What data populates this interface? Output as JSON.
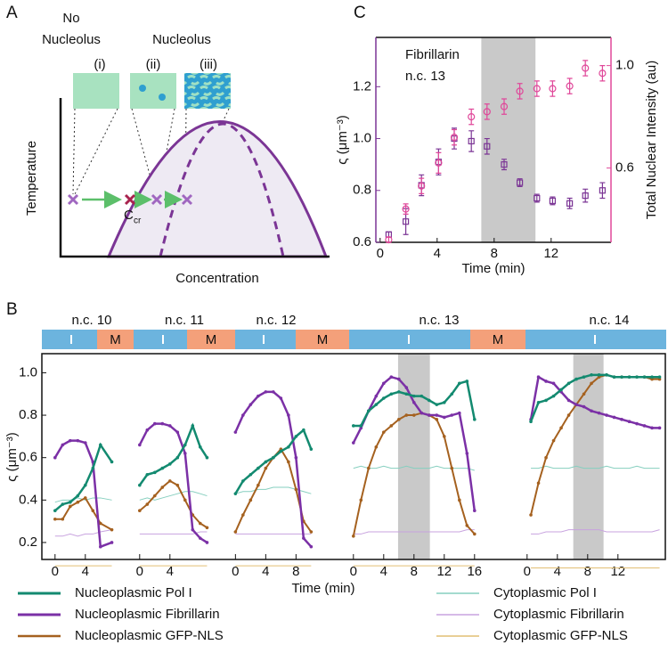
{
  "diagram": {
    "panel_label": "A",
    "no_nucleolus": [
      "No",
      "Nucleolus"
    ],
    "nucleolus": "Nucleolus",
    "phases": [
      "(i)",
      "(ii)",
      "(iii)"
    ],
    "y_label": "Temperature",
    "x_label": "Concentration",
    "critical": {
      "symbol": "C",
      "subscript": "cr"
    }
  },
  "chart_data": [
    {
      "type": "scatter",
      "panel_label": "C",
      "annotation": [
        "Fibrillarin",
        "n.c. 13"
      ],
      "x_label": "Time (min)",
      "y_label": "ς (μm⁻³)",
      "y2_label": "Total Nuclear Intensity (au)",
      "xlim": [
        -0.3,
        16.2
      ],
      "xticks": [
        0,
        4,
        8,
        12
      ],
      "ylim": [
        0.6,
        1.39
      ],
      "yticks": [
        0.6,
        0.8,
        {
          "value": 1.0,
          "label": "1.0"
        },
        1.2
      ],
      "y2lim": [
        0.31,
        1.11
      ],
      "y2ticks": [
        0.6,
        {
          "value": 1.0,
          "label": "1.0"
        }
      ],
      "shade": [
        7.1,
        10.9
      ],
      "x": [
        0.6,
        1.8,
        2.9,
        4.1,
        5.2,
        6.4,
        7.5,
        8.7,
        9.8,
        11.0,
        12.1,
        13.3,
        14.4,
        15.6
      ],
      "series": [
        {
          "color": "#7b3595",
          "marker": "square",
          "values": [
            0.63,
            0.68,
            0.82,
            0.91,
            1.0,
            0.99,
            0.97,
            0.9,
            0.83,
            0.77,
            0.76,
            0.75,
            0.78,
            0.8
          ],
          "errors": [
            0.01,
            0.05,
            0.04,
            0.05,
            0.04,
            0.04,
            0.03,
            0.02,
            0.015,
            0.015,
            0.015,
            0.02,
            0.025,
            0.03
          ]
        },
        {
          "color": "#e0489a",
          "marker": "circle",
          "axis": "y2",
          "values": [
            0.32,
            0.44,
            0.53,
            0.62,
            0.72,
            0.8,
            0.82,
            0.84,
            0.9,
            0.91,
            0.91,
            0.92,
            0.99,
            0.97
          ],
          "errors": [
            0.01,
            0.02,
            0.03,
            0.04,
            0.03,
            0.03,
            0.03,
            0.03,
            0.03,
            0.03,
            0.03,
            0.03,
            0.03,
            0.03
          ]
        }
      ]
    },
    {
      "type": "line",
      "panel_label": "B",
      "x_label": "Time (min)",
      "y_label": "ς (μm⁻³)",
      "ylim": [
        0.12,
        1.09
      ],
      "yticks": [
        0.2,
        0.4,
        0.6,
        0.8,
        {
          "value": 1.0,
          "label": "1.0"
        }
      ],
      "legend": "bottom",
      "series": [
        {
          "name": "Nucleoplasmic Pol I",
          "color": "#138a70",
          "width": 2.5
        },
        {
          "name": "Nucleoplasmic Fibrillarin",
          "color": "#7b30a6",
          "width": 2.5
        },
        {
          "name": "Nucleoplasmic GFP-NLS",
          "color": "#a5611f",
          "width": 2
        },
        {
          "name": "Cytoplasmic Pol I",
          "color": "#86cfbf",
          "width": 1
        },
        {
          "name": "Cytoplasmic Fibrillarin",
          "color": "#c8a3df",
          "width": 1
        },
        {
          "name": "Cytoplasmic GFP-NLS",
          "color": "#e2bf74",
          "width": 1
        }
      ],
      "panels": [
        {
          "title": "n.c. 10",
          "phase": "M",
          "xlim": [
            -0.8,
            8.1
          ],
          "xticks": [
            0,
            4
          ],
          "x": [
            0,
            1,
            2,
            3,
            4,
            5,
            6,
            7.5
          ],
          "values": [
            [
              0.35,
              0.38,
              0.39,
              0.42,
              0.47,
              0.55,
              0.66,
              0.58
            ],
            [
              0.6,
              0.66,
              0.68,
              0.68,
              0.67,
              0.58,
              0.18,
              0.2
            ],
            [
              0.31,
              0.31,
              0.37,
              0.39,
              0.41,
              0.35,
              0.29,
              0.26
            ],
            [
              0.39,
              0.4,
              0.4,
              0.41,
              0.4,
              0.41,
              0.41,
              0.4
            ],
            [
              0.23,
              0.23,
              0.24,
              0.23,
              0.24,
              0.24,
              0.25,
              0.26
            ],
            [
              0.09,
              0.09,
              0.09,
              0.09,
              0.09,
              0.09,
              0.09,
              0.09
            ]
          ]
        },
        {
          "title": "n.c. 11",
          "phase": "M",
          "xlim": [
            -0.8,
            9.2
          ],
          "xticks": [
            0,
            4
          ],
          "x": [
            0,
            1,
            2,
            3,
            4,
            5,
            6,
            7,
            8,
            8.9
          ],
          "values": [
            [
              0.47,
              0.52,
              0.53,
              0.55,
              0.57,
              0.6,
              0.66,
              0.75,
              0.65,
              0.6
            ],
            [
              0.66,
              0.73,
              0.76,
              0.76,
              0.75,
              0.72,
              0.62,
              0.26,
              0.22,
              0.2
            ],
            [
              0.35,
              0.38,
              0.42,
              0.46,
              0.49,
              0.47,
              0.4,
              0.33,
              0.29,
              0.27
            ],
            [
              0.4,
              0.41,
              0.4,
              0.41,
              0.42,
              0.43,
              0.44,
              0.44,
              0.43,
              0.42
            ],
            [
              0.24,
              0.24,
              0.24,
              0.24,
              0.24,
              0.24,
              0.24,
              0.24,
              0.25,
              0.25
            ],
            [
              0.09,
              0.09,
              0.09,
              0.09,
              0.09,
              0.09,
              0.09,
              0.09,
              0.09,
              0.09
            ]
          ]
        },
        {
          "title": "n.c. 12",
          "phase": "M",
          "xlim": [
            -1.1,
            11.4
          ],
          "xticks": [
            0,
            4,
            8
          ],
          "x": [
            0,
            1,
            2,
            3,
            4,
            5,
            6,
            7,
            8,
            9,
            10
          ],
          "values": [
            [
              0.43,
              0.49,
              0.52,
              0.55,
              0.58,
              0.6,
              0.63,
              0.65,
              0.7,
              0.73,
              0.64
            ],
            [
              0.72,
              0.8,
              0.85,
              0.89,
              0.91,
              0.91,
              0.88,
              0.8,
              0.6,
              0.22,
              0.18
            ],
            [
              0.25,
              0.33,
              0.4,
              0.47,
              0.55,
              0.6,
              0.64,
              0.58,
              0.45,
              0.3,
              0.25
            ],
            [
              0.43,
              0.44,
              0.44,
              0.45,
              0.45,
              0.46,
              0.46,
              0.46,
              0.45,
              0.44,
              0.43
            ],
            [
              0.24,
              0.24,
              0.24,
              0.24,
              0.24,
              0.24,
              0.24,
              0.24,
              0.24,
              0.24,
              0.24
            ],
            [
              0.09,
              0.09,
              0.09,
              0.09,
              0.09,
              0.09,
              0.09,
              0.09,
              0.09,
              0.09,
              0.09
            ]
          ]
        },
        {
          "title": "n.c. 13",
          "phase": "M",
          "xlim": [
            -0.8,
            19.6
          ],
          "xticks": [
            0,
            4,
            8,
            12,
            16
          ],
          "shade": [
            5.9,
            10.1
          ],
          "x": [
            0,
            1,
            2,
            3,
            4,
            5,
            6,
            7,
            8,
            9,
            10,
            11,
            12,
            13,
            14,
            15,
            16
          ],
          "values": [
            [
              0.75,
              0.75,
              0.82,
              0.85,
              0.88,
              0.9,
              0.91,
              0.9,
              0.89,
              0.89,
              0.87,
              0.85,
              0.86,
              0.9,
              0.95,
              0.96,
              0.78
            ],
            [
              0.67,
              0.74,
              0.82,
              0.89,
              0.95,
              0.98,
              0.97,
              0.93,
              0.86,
              0.81,
              0.8,
              0.8,
              0.79,
              0.8,
              0.81,
              0.62,
              0.35
            ],
            [
              0.23,
              0.4,
              0.55,
              0.65,
              0.72,
              0.75,
              0.78,
              0.8,
              0.8,
              0.81,
              0.8,
              0.78,
              0.7,
              0.55,
              0.4,
              0.28,
              0.24
            ],
            [
              0.55,
              0.56,
              0.55,
              0.55,
              0.56,
              0.55,
              0.55,
              0.56,
              0.55,
              0.55,
              0.55,
              0.56,
              0.55,
              0.55,
              0.55,
              0.55,
              0.54
            ],
            [
              0.24,
              0.24,
              0.25,
              0.25,
              0.25,
              0.25,
              0.25,
              0.25,
              0.25,
              0.25,
              0.25,
              0.25,
              0.25,
              0.25,
              0.25,
              0.26,
              0.26
            ],
            [
              0.09,
              0.09,
              0.09,
              0.09,
              0.09,
              0.09,
              0.09,
              0.09,
              0.09,
              0.09,
              0.09,
              0.09,
              0.09,
              0.09,
              0.09,
              0.09,
              0.09
            ]
          ]
        },
        {
          "title": "n.c. 14",
          "xlim": [
            -0.8,
            18.4
          ],
          "xticks": [
            0,
            4,
            8,
            12
          ],
          "shade": [
            6.1,
            10.1
          ],
          "x": [
            0.5,
            1.5,
            2.5,
            3.5,
            4.5,
            5.5,
            6.5,
            7.5,
            8.5,
            9.5,
            10.5,
            11.5,
            12.5,
            13.5,
            14.5,
            15.5,
            16.5,
            17.5
          ],
          "values": [
            [
              0.77,
              0.86,
              0.87,
              0.89,
              0.92,
              0.95,
              0.97,
              0.98,
              0.99,
              0.99,
              0.99,
              0.98,
              0.98,
              0.98,
              0.98,
              0.98,
              0.98,
              0.98
            ],
            [
              0.78,
              0.98,
              0.96,
              0.95,
              0.91,
              0.87,
              0.85,
              0.84,
              0.82,
              0.81,
              0.8,
              0.79,
              0.78,
              0.77,
              0.76,
              0.75,
              0.74,
              0.74
            ],
            [
              0.33,
              0.48,
              0.6,
              0.68,
              0.74,
              0.8,
              0.85,
              0.9,
              0.95,
              0.98,
              0.99,
              0.98,
              0.98,
              0.98,
              0.98,
              0.98,
              0.97,
              0.97
            ],
            [
              0.55,
              0.55,
              0.56,
              0.55,
              0.55,
              0.55,
              0.56,
              0.55,
              0.55,
              0.55,
              0.56,
              0.55,
              0.55,
              0.55,
              0.56,
              0.55,
              0.55,
              0.55
            ],
            [
              0.24,
              0.24,
              0.25,
              0.25,
              0.25,
              0.26,
              0.26,
              0.26,
              0.26,
              0.26,
              0.25,
              0.25,
              0.25,
              0.25,
              0.25,
              0.25,
              0.25,
              0.26
            ],
            [
              0.08,
              0.08,
              0.08,
              0.08,
              0.08,
              0.08,
              0.08,
              0.08,
              0.08,
              0.08,
              0.08,
              0.08,
              0.08,
              0.08,
              0.08,
              0.08,
              0.08,
              0.08
            ]
          ]
        }
      ]
    }
  ]
}
